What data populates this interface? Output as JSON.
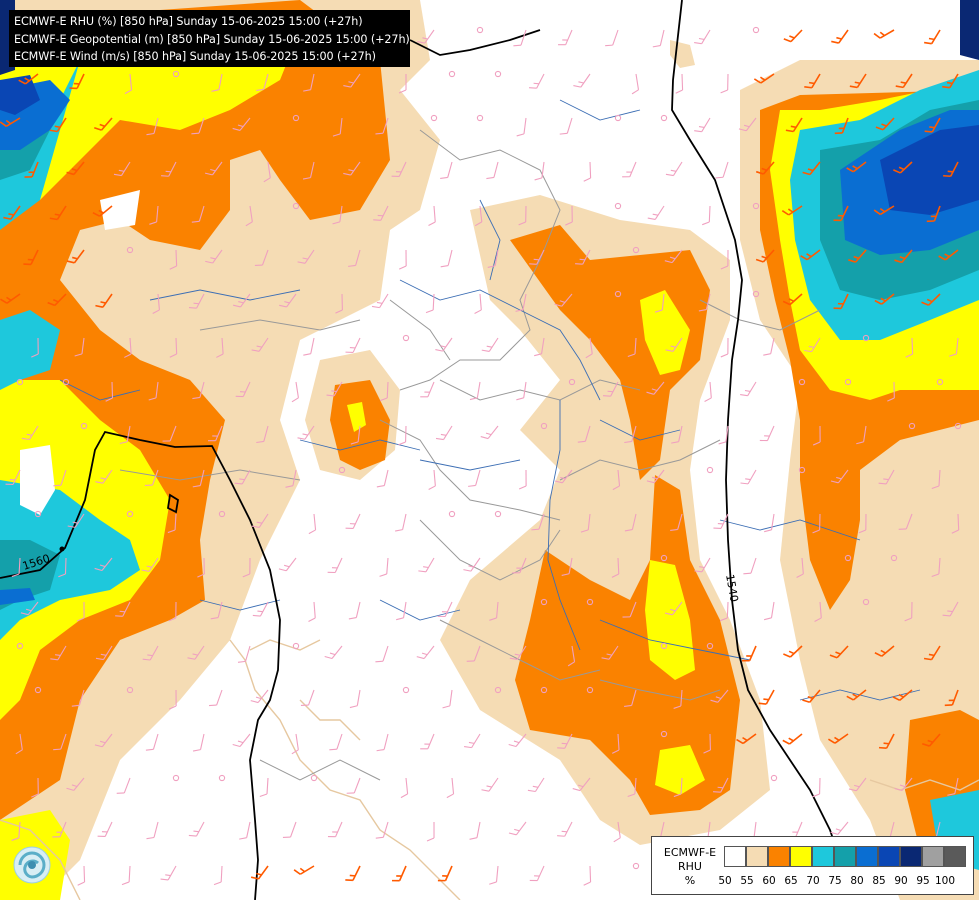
{
  "header": {
    "lines": [
      "ECMWF-E RHU (%) [850 hPa] Sunday 15-06-2025 15:00 (+27h)",
      "ECMWF-E Geopotential (m) [850 hPa] Sunday 15-06-2025 15:00 (+27h)",
      "ECMWF-E Wind (m/s) [850 hPa] Sunday 15-06-2025 15:00 (+27h)"
    ]
  },
  "contours": {
    "label_1560": "1560",
    "label_1540": "1540"
  },
  "legend": {
    "title_line1": "ECMWF-E",
    "title_line2": "RHU",
    "unit": "%",
    "swatch_colors": [
      "#ffffff",
      "#f5dcb4",
      "#fa8200",
      "#ffff00",
      "#1ec8dc",
      "#14a0aa",
      "#0a6ed2",
      "#0a46b4",
      "#0a2873",
      "#a0a0a0",
      "#5a5a5a"
    ],
    "labels": [
      "50",
      "55",
      "60",
      "65",
      "70",
      "75",
      "80",
      "85",
      "90",
      "95",
      "100"
    ]
  },
  "colors": {
    "rhu_50": "#ffffff",
    "rhu_55": "#f5dcb4",
    "rhu_60": "#fa8200",
    "rhu_65": "#ffff00",
    "rhu_70": "#1ec8dc",
    "rhu_75": "#14a0aa",
    "rhu_80": "#0a6ed2",
    "rhu_85": "#0a46b4",
    "rhu_90": "#0a2873",
    "coast": "#e6c8a0",
    "river": "#3c6eb4",
    "border": "#8c8c8c",
    "wind_weak": "#f0a0c0",
    "wind_strong": "#ff5a00"
  },
  "logo": {
    "icon": "weather-logo-icon"
  }
}
